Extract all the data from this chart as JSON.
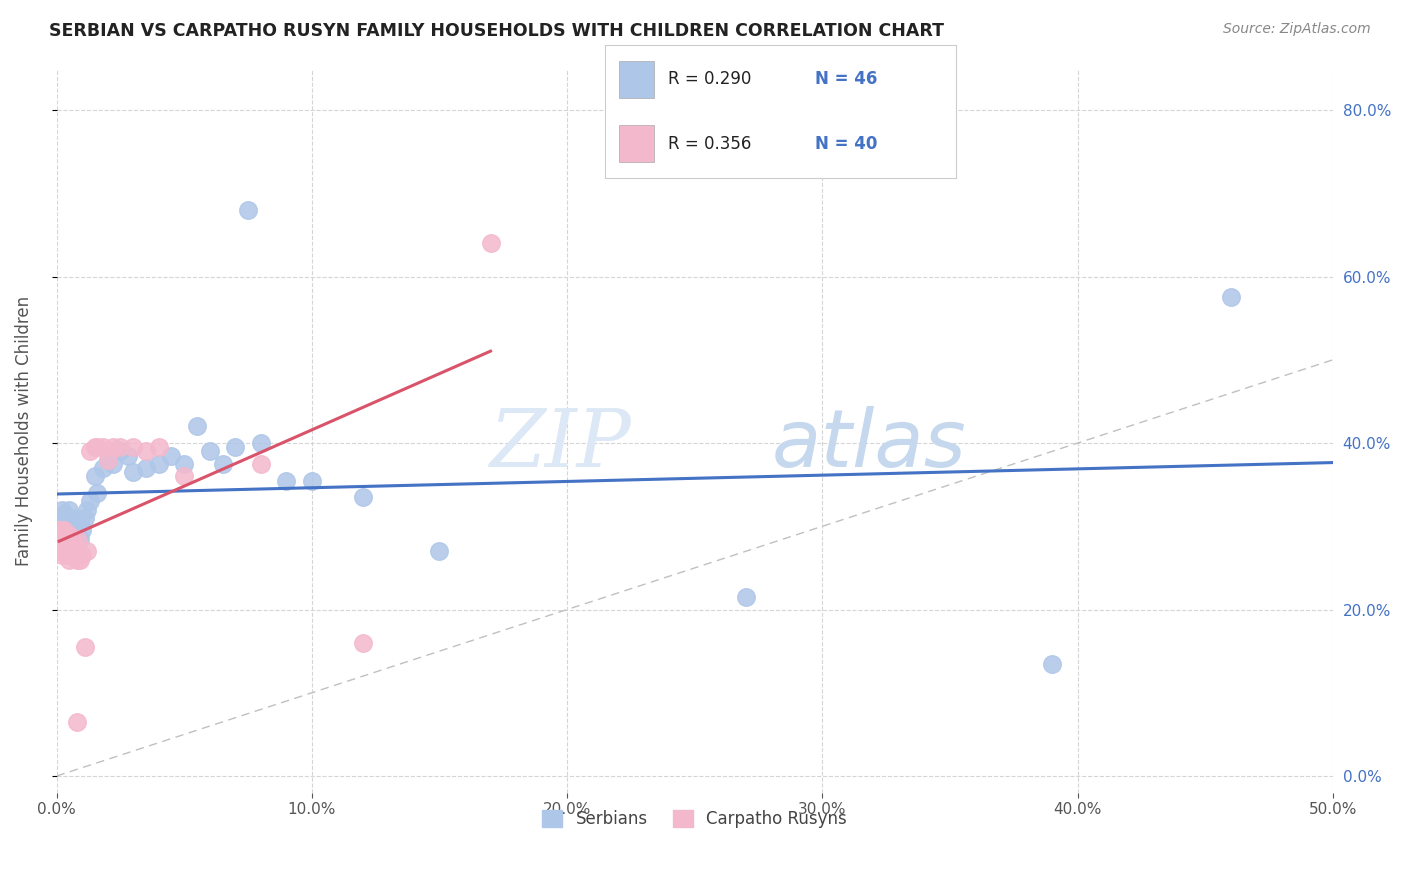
{
  "title": "SERBIAN VS CARPATHO RUSYN FAMILY HOUSEHOLDS WITH CHILDREN CORRELATION CHART",
  "source": "Source: ZipAtlas.com",
  "ylabel": "Family Households with Children",
  "xlim": [
    0.0,
    0.5
  ],
  "ylim": [
    -0.02,
    0.85
  ],
  "xticks": [
    0.0,
    0.1,
    0.2,
    0.3,
    0.4,
    0.5
  ],
  "yticks": [
    0.0,
    0.2,
    0.4,
    0.6,
    0.8
  ],
  "ytick_labels_right": [
    "0.0%",
    "20.0%",
    "40.0%",
    "60.0%",
    "80.0%"
  ],
  "serbian_R": 0.29,
  "serbian_N": 46,
  "rusyn_R": 0.356,
  "rusyn_N": 40,
  "serbian_color": "#aec6e8",
  "rusyn_color": "#f4b8cc",
  "serbian_line_color": "#4472C4",
  "rusyn_line_color": "#d9536a",
  "watermark_zip": "ZIP",
  "watermark_atlas": "atlas",
  "legend_serbian_label": "Serbians",
  "legend_rusyn_label": "Carpatho Rusyns",
  "serbian_x": [
    0.001,
    0.002,
    0.002,
    0.003,
    0.003,
    0.004,
    0.004,
    0.005,
    0.005,
    0.006,
    0.006,
    0.007,
    0.007,
    0.008,
    0.008,
    0.009,
    0.009,
    0.01,
    0.011,
    0.012,
    0.013,
    0.015,
    0.016,
    0.018,
    0.02,
    0.022,
    0.025,
    0.028,
    0.03,
    0.035,
    0.04,
    0.045,
    0.05,
    0.055,
    0.06,
    0.065,
    0.07,
    0.075,
    0.08,
    0.09,
    0.1,
    0.12,
    0.15,
    0.27,
    0.39,
    0.46
  ],
  "serbian_y": [
    0.305,
    0.32,
    0.295,
    0.31,
    0.315,
    0.3,
    0.31,
    0.295,
    0.32,
    0.305,
    0.285,
    0.295,
    0.31,
    0.29,
    0.3,
    0.305,
    0.285,
    0.295,
    0.31,
    0.32,
    0.33,
    0.36,
    0.34,
    0.37,
    0.38,
    0.375,
    0.39,
    0.385,
    0.365,
    0.37,
    0.375,
    0.385,
    0.375,
    0.42,
    0.39,
    0.375,
    0.395,
    0.68,
    0.4,
    0.355,
    0.355,
    0.335,
    0.27,
    0.215,
    0.135,
    0.575
  ],
  "rusyn_x": [
    0.001,
    0.001,
    0.002,
    0.002,
    0.002,
    0.003,
    0.003,
    0.003,
    0.004,
    0.004,
    0.004,
    0.005,
    0.005,
    0.005,
    0.006,
    0.006,
    0.006,
    0.007,
    0.007,
    0.008,
    0.008,
    0.008,
    0.009,
    0.01,
    0.011,
    0.012,
    0.013,
    0.015,
    0.016,
    0.018,
    0.02,
    0.022,
    0.025,
    0.03,
    0.035,
    0.04,
    0.05,
    0.08,
    0.12,
    0.17
  ],
  "rusyn_y": [
    0.27,
    0.295,
    0.28,
    0.265,
    0.295,
    0.27,
    0.285,
    0.295,
    0.275,
    0.285,
    0.265,
    0.28,
    0.29,
    0.26,
    0.275,
    0.265,
    0.285,
    0.28,
    0.27,
    0.26,
    0.285,
    0.065,
    0.26,
    0.265,
    0.155,
    0.27,
    0.39,
    0.395,
    0.395,
    0.395,
    0.38,
    0.395,
    0.395,
    0.395,
    0.39,
    0.395,
    0.36,
    0.375,
    0.16,
    0.64
  ],
  "bg_color": "#ffffff",
  "grid_color": "#d5d5d5",
  "tick_color": "#555555"
}
